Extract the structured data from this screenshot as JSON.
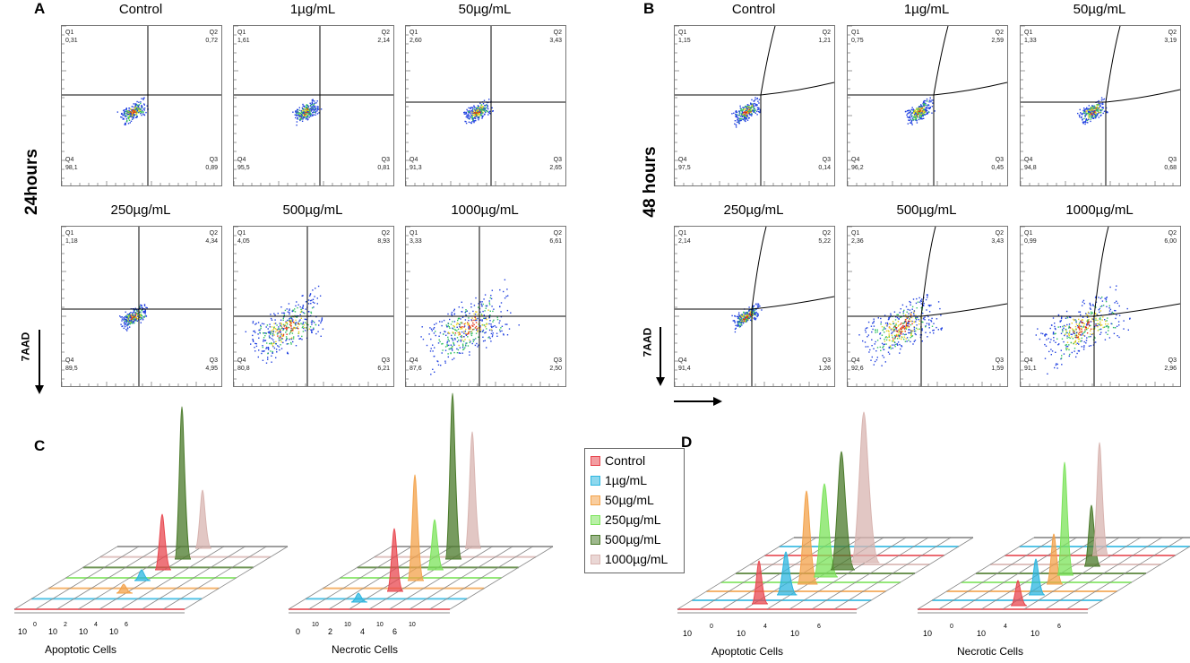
{
  "panels": {
    "A": {
      "letter": "A",
      "row_label": "24hours",
      "axis_label": "7AAD",
      "plots": [
        {
          "title": "Control",
          "q1": "0,31",
          "q2": "0,72",
          "q3": "0,89",
          "q4": "98,1"
        },
        {
          "title": "1µg/mL",
          "q1": "1,61",
          "q2": "2,14",
          "q3": "0,81",
          "q4": "95,5"
        },
        {
          "title": "50µg/mL",
          "q1": "2,60",
          "q2": "3,43",
          "q3": "2,65",
          "q4": "91,3"
        },
        {
          "title": "250µg/mL",
          "q1": "1,18",
          "q2": "4,34",
          "q3": "4,95",
          "q4": "89,5"
        },
        {
          "title": "500µg/mL",
          "q1": "4,05",
          "q2": "8,93",
          "q3": "6,21",
          "q4": "80,8"
        },
        {
          "title": "1000µg/mL",
          "q1": "3,33",
          "q2": "6,61",
          "q3": "2,50",
          "q4": "87,6"
        }
      ]
    },
    "B": {
      "letter": "B",
      "row_label": "48 hours",
      "axis_label": "7AAD",
      "plots": [
        {
          "title": "Control",
          "q1": "1,15",
          "q2": "1,21",
          "q3": "0,14",
          "q4": "97,5"
        },
        {
          "title": "1µg/mL",
          "q1": "0,75",
          "q2": "2,59",
          "q3": "0,45",
          "q4": "96,2"
        },
        {
          "title": "50µg/mL",
          "q1": "1,33",
          "q2": "3,19",
          "q3": "0,68",
          "q4": "94,8"
        },
        {
          "title": "250µg/mL",
          "q1": "2,14",
          "q2": "5,22",
          "q3": "1,26",
          "q4": "91,4"
        },
        {
          "title": "500µg/mL",
          "q1": "2,36",
          "q2": "3,43",
          "q3": "1,59",
          "q4": "92,6"
        },
        {
          "title": "1000µg/mL",
          "q1": "0,99",
          "q2": "6,00",
          "q3": "2,96",
          "q4": "91,1"
        }
      ]
    },
    "C": {
      "letter": "C",
      "left_label": "Apoptotic Cells",
      "right_label": "Necrotic Cells"
    },
    "D": {
      "letter": "D",
      "left_label": "Apoptotic Cells",
      "right_label": "Necrotic Cells"
    }
  },
  "quadrant_names": {
    "q1": "Q1",
    "q2": "Q2",
    "q3": "Q3",
    "q4": "Q4"
  },
  "legend": [
    {
      "label": "Control",
      "color": "#e8474f"
    },
    {
      "label": "1µg/mL",
      "color": "#2bb6e0"
    },
    {
      "label": "50µg/mL",
      "color": "#f3a24a"
    },
    {
      "label": "250µg/mL",
      "color": "#7be35a"
    },
    {
      "label": "500µg/mL",
      "color": "#4a7a2a"
    },
    {
      "label": "1000µg/mL",
      "color": "#d8b4b0"
    }
  ],
  "ticks": {
    "C_left": [
      "10",
      "0",
      "10",
      "2",
      "10",
      "4",
      "10",
      "6"
    ],
    "C_right": [
      "0",
      "10",
      "2",
      "10",
      "4",
      "10",
      "6",
      "10"
    ],
    "D_left": [
      "10",
      "0",
      "10",
      "4",
      "10",
      "6"
    ],
    "D_right": [
      "10",
      "0",
      "10",
      "4",
      "10",
      "6"
    ]
  }
}
